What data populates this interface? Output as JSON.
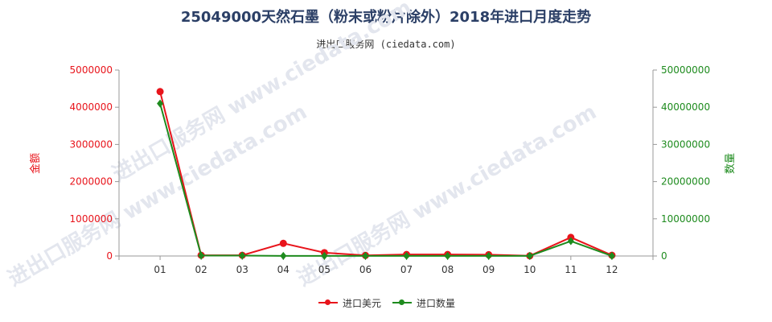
{
  "title": "25049000天然石墨（粉末或粉片除外）2018年进口月度走势",
  "subtitle": "进出口服务网 (ciedata.com)",
  "watermark": "进出口服务网 www.ciedata.com",
  "chart_data": {
    "type": "line",
    "categories": [
      "01",
      "02",
      "03",
      "04",
      "05",
      "06",
      "07",
      "08",
      "09",
      "10",
      "11",
      "12"
    ],
    "series": [
      {
        "name": "进口美元",
        "axis": "left",
        "color": "#e8141b",
        "values": [
          4420000,
          20000,
          20000,
          340000,
          90000,
          15000,
          40000,
          40000,
          35000,
          5000,
          500000,
          20000
        ]
      },
      {
        "name": "进口数量",
        "axis": "right",
        "color": "#1e8b1e",
        "values": [
          41000000,
          100000,
          100000,
          30000,
          20000,
          30000,
          20000,
          20000,
          20000,
          30000,
          4000000,
          20000
        ]
      }
    ],
    "y_left": {
      "label": "金额",
      "min": 0,
      "max": 5000000,
      "ticks": [
        0,
        1000000,
        2000000,
        3000000,
        4000000,
        5000000
      ],
      "color": "#e8141b"
    },
    "y_right": {
      "label": "数量",
      "min": 0,
      "max": 50000000,
      "ticks": [
        0,
        10000000,
        20000000,
        30000000,
        40000000,
        50000000
      ],
      "color": "#1e8b1e"
    },
    "grid": false,
    "legend_position": "bottom-center"
  }
}
